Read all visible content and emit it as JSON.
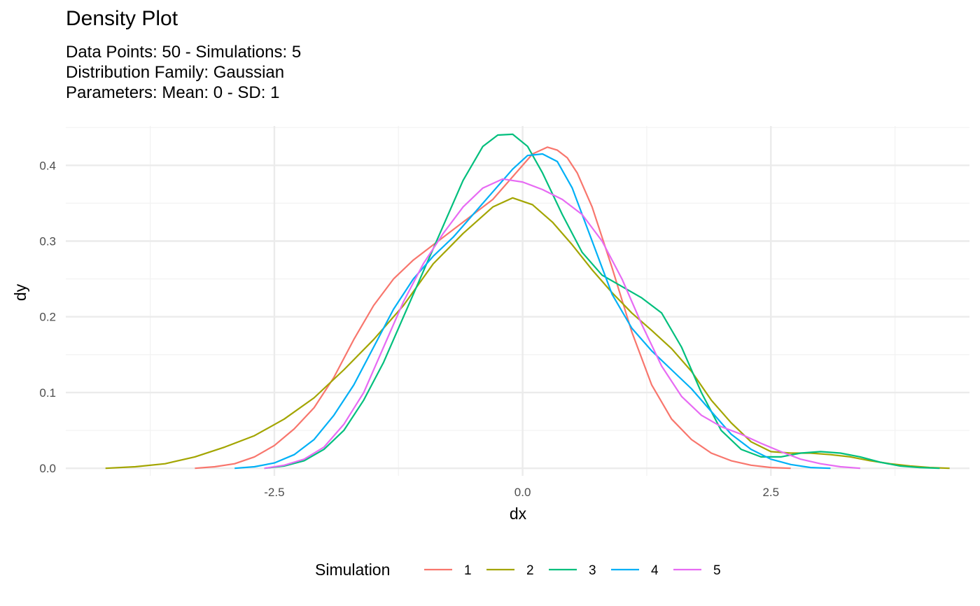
{
  "chart_data": {
    "type": "line",
    "title": "Density Plot",
    "subtitle": [
      "Data Points: 50 - Simulations: 5",
      "Distribution Family: Gaussian",
      "Parameters: Mean: 0 - SD: 1"
    ],
    "xlabel": "dx",
    "ylabel": "dy",
    "xlim": [
      -4.6,
      4.5
    ],
    "ylim": [
      -0.01,
      0.452
    ],
    "x_ticks": [
      -2.5,
      0.0,
      2.5
    ],
    "x_tick_labels": [
      "-2.5",
      "0.0",
      "2.5"
    ],
    "y_ticks": [
      0.0,
      0.1,
      0.2,
      0.3,
      0.4
    ],
    "y_tick_labels": [
      "0.0",
      "0.1",
      "0.2",
      "0.3",
      "0.4"
    ],
    "grid": true,
    "legend_title": "Simulation",
    "legend_position": "bottom",
    "series": [
      {
        "name": "1",
        "color": "#F8766D",
        "x": [
          -3.3,
          -3.1,
          -2.9,
          -2.7,
          -2.5,
          -2.3,
          -2.1,
          -1.9,
          -1.7,
          -1.5,
          -1.3,
          -1.1,
          -0.9,
          -0.7,
          -0.5,
          -0.3,
          -0.1,
          0.1,
          0.25,
          0.35,
          0.45,
          0.55,
          0.7,
          0.9,
          1.1,
          1.3,
          1.5,
          1.7,
          1.9,
          2.1,
          2.3,
          2.5,
          2.7
        ],
        "y": [
          0.0,
          0.002,
          0.006,
          0.015,
          0.03,
          0.052,
          0.08,
          0.12,
          0.17,
          0.215,
          0.25,
          0.275,
          0.295,
          0.315,
          0.335,
          0.355,
          0.385,
          0.415,
          0.424,
          0.42,
          0.41,
          0.39,
          0.345,
          0.265,
          0.18,
          0.11,
          0.065,
          0.038,
          0.02,
          0.01,
          0.004,
          0.001,
          0.0
        ]
      },
      {
        "name": "2",
        "color": "#A3A500",
        "x": [
          -4.2,
          -3.9,
          -3.6,
          -3.3,
          -3.0,
          -2.7,
          -2.4,
          -2.1,
          -1.8,
          -1.5,
          -1.2,
          -0.9,
          -0.6,
          -0.3,
          -0.1,
          0.1,
          0.3,
          0.5,
          0.7,
          0.9,
          1.1,
          1.3,
          1.5,
          1.7,
          1.9,
          2.1,
          2.3,
          2.5,
          2.7,
          2.9,
          3.1,
          3.3,
          3.5,
          3.7,
          3.9,
          4.1,
          4.3
        ],
        "y": [
          0.0,
          0.002,
          0.006,
          0.015,
          0.028,
          0.043,
          0.065,
          0.093,
          0.13,
          0.17,
          0.215,
          0.27,
          0.31,
          0.345,
          0.357,
          0.348,
          0.325,
          0.295,
          0.262,
          0.232,
          0.205,
          0.182,
          0.158,
          0.128,
          0.09,
          0.06,
          0.035,
          0.022,
          0.02,
          0.02,
          0.018,
          0.015,
          0.01,
          0.006,
          0.003,
          0.001,
          0.0
        ]
      },
      {
        "name": "3",
        "color": "#00BF7D",
        "x": [
          -2.6,
          -2.4,
          -2.2,
          -2.0,
          -1.8,
          -1.6,
          -1.4,
          -1.2,
          -1.0,
          -0.8,
          -0.6,
          -0.4,
          -0.25,
          -0.1,
          0.05,
          0.2,
          0.4,
          0.6,
          0.8,
          1.0,
          1.2,
          1.4,
          1.6,
          1.8,
          2.0,
          2.2,
          2.4,
          2.6,
          2.8,
          3.0,
          3.2,
          3.4,
          3.6,
          3.8,
          4.0,
          4.2
        ],
        "y": [
          0.0,
          0.003,
          0.01,
          0.025,
          0.05,
          0.09,
          0.14,
          0.2,
          0.26,
          0.32,
          0.38,
          0.425,
          0.44,
          0.441,
          0.425,
          0.39,
          0.335,
          0.285,
          0.255,
          0.24,
          0.225,
          0.205,
          0.16,
          0.1,
          0.05,
          0.025,
          0.015,
          0.015,
          0.02,
          0.022,
          0.02,
          0.015,
          0.008,
          0.003,
          0.001,
          0.0
        ]
      },
      {
        "name": "4",
        "color": "#00B0F6",
        "x": [
          -2.9,
          -2.7,
          -2.5,
          -2.3,
          -2.1,
          -1.9,
          -1.7,
          -1.5,
          -1.3,
          -1.1,
          -0.9,
          -0.7,
          -0.5,
          -0.3,
          -0.1,
          0.05,
          0.2,
          0.35,
          0.5,
          0.7,
          0.9,
          1.1,
          1.3,
          1.5,
          1.7,
          1.9,
          2.1,
          2.3,
          2.5,
          2.7,
          2.9,
          3.1
        ],
        "y": [
          0.0,
          0.002,
          0.007,
          0.018,
          0.038,
          0.07,
          0.11,
          0.16,
          0.21,
          0.25,
          0.28,
          0.305,
          0.335,
          0.365,
          0.395,
          0.413,
          0.415,
          0.405,
          0.37,
          0.3,
          0.23,
          0.185,
          0.155,
          0.13,
          0.105,
          0.075,
          0.045,
          0.025,
          0.012,
          0.005,
          0.001,
          0.0
        ]
      },
      {
        "name": "5",
        "color": "#E76BF3",
        "x": [
          -2.6,
          -2.4,
          -2.2,
          -2.0,
          -1.8,
          -1.6,
          -1.4,
          -1.2,
          -1.0,
          -0.8,
          -0.6,
          -0.4,
          -0.2,
          0.0,
          0.2,
          0.4,
          0.6,
          0.8,
          1.0,
          1.2,
          1.4,
          1.6,
          1.8,
          2.0,
          2.2,
          2.4,
          2.6,
          2.8,
          3.0,
          3.2,
          3.4
        ],
        "y": [
          0.0,
          0.004,
          0.012,
          0.028,
          0.058,
          0.1,
          0.16,
          0.22,
          0.27,
          0.31,
          0.345,
          0.37,
          0.382,
          0.378,
          0.368,
          0.355,
          0.335,
          0.3,
          0.25,
          0.19,
          0.135,
          0.095,
          0.07,
          0.055,
          0.045,
          0.033,
          0.022,
          0.012,
          0.006,
          0.002,
          0.0
        ]
      }
    ]
  }
}
